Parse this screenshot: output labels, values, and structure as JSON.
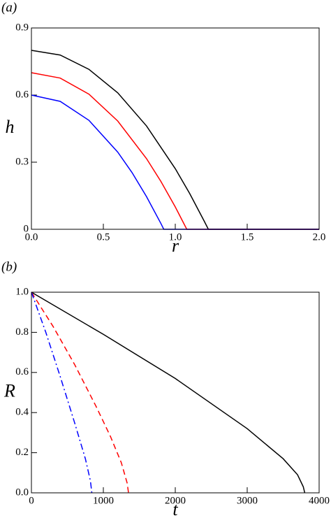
{
  "chart_data": [
    {
      "type": "line",
      "label": "(a)",
      "xlabel": "r",
      "ylabel": "h",
      "xlim": [
        0,
        2.0
      ],
      "ylim": [
        0,
        0.9
      ],
      "xticks": [
        {
          "value": 0,
          "label": "0.0"
        },
        0.5,
        {
          "value": 1,
          "label": "1.0"
        },
        1.5,
        {
          "value": 2,
          "label": "2.0"
        }
      ],
      "yticks": [
        0,
        0.3,
        0.6,
        0.9
      ],
      "series": [
        {
          "color": "#000000",
          "style": "solid",
          "x": [
            0,
            0.2,
            0.4,
            0.6,
            0.8,
            1.0,
            1.1,
            1.2,
            1.23,
            2.0
          ],
          "values": [
            0.8,
            0.779,
            0.715,
            0.61,
            0.462,
            0.271,
            0.16,
            0.038,
            0,
            0
          ]
        },
        {
          "color": "#ff0000",
          "style": "solid",
          "x": [
            0,
            0.2,
            0.4,
            0.6,
            0.8,
            0.9,
            1.0,
            1.08,
            2.0
          ],
          "values": [
            0.7,
            0.676,
            0.604,
            0.484,
            0.316,
            0.214,
            0.1,
            0,
            0
          ]
        },
        {
          "color": "#0000ff",
          "style": "solid",
          "x": [
            0,
            0.2,
            0.4,
            0.6,
            0.7,
            0.8,
            0.9,
            0.92,
            2.0
          ],
          "values": [
            0.6,
            0.572,
            0.487,
            0.345,
            0.253,
            0.146,
            0.026,
            0,
            0
          ]
        }
      ]
    },
    {
      "type": "line",
      "label": "(b)",
      "xlabel": "t",
      "ylabel": "R",
      "xlim": [
        0,
        4000
      ],
      "ylim": [
        0,
        1.0
      ],
      "xticks": [
        0,
        1000,
        2000,
        3000,
        4000
      ],
      "yticks": [
        {
          "value": 0,
          "label": "0.0"
        },
        0.2,
        0.4,
        0.6,
        0.8,
        {
          "value": 1,
          "label": "1.0"
        }
      ],
      "series": [
        {
          "color": "#000000",
          "style": "solid",
          "x": [
            0,
            1000,
            2000,
            3000,
            3500,
            3700,
            3780,
            3800
          ],
          "values": [
            1.0,
            0.79,
            0.57,
            0.32,
            0.17,
            0.09,
            0.03,
            0
          ]
        },
        {
          "color": "#ff0000",
          "style": "dashed",
          "x": [
            0,
            300,
            600,
            900,
            1100,
            1250,
            1330,
            1350
          ],
          "values": [
            1.0,
            0.83,
            0.64,
            0.43,
            0.28,
            0.15,
            0.05,
            0
          ]
        },
        {
          "color": "#0000ff",
          "style": "dashdot",
          "x": [
            0,
            200,
            400,
            600,
            750,
            820,
            840
          ],
          "values": [
            1.0,
            0.8,
            0.58,
            0.35,
            0.17,
            0.06,
            0
          ]
        }
      ]
    }
  ]
}
